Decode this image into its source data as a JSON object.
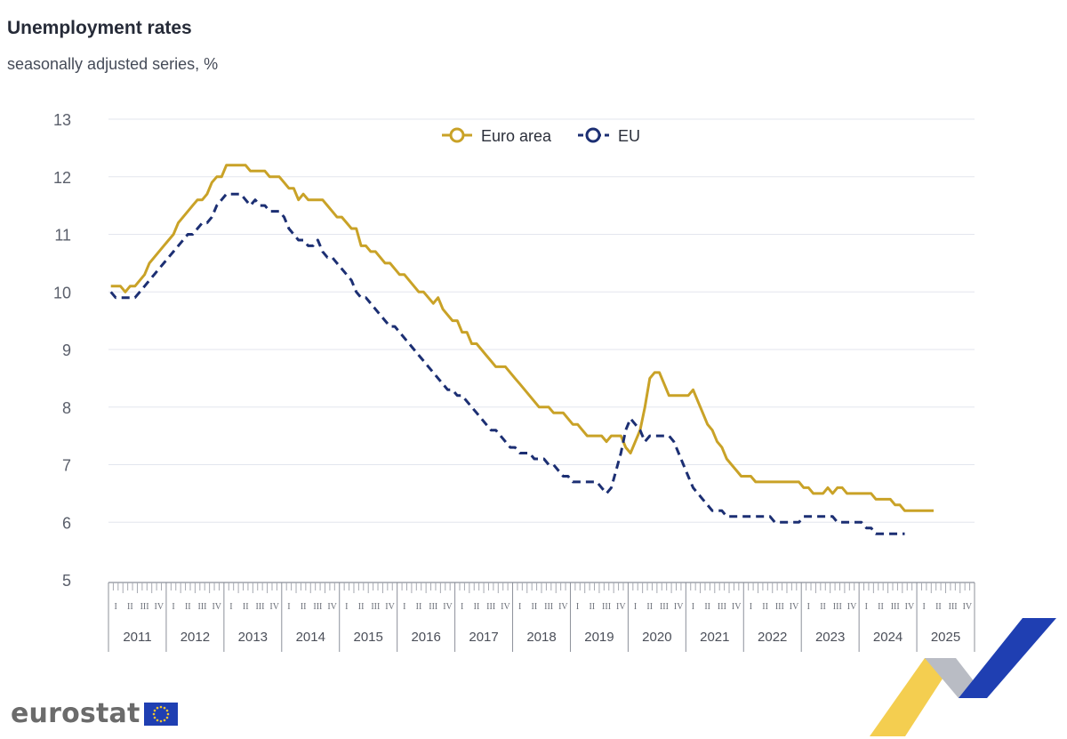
{
  "header": {
    "title": "Unemployment rates",
    "subtitle": "seasonally adjusted series, %"
  },
  "brand": {
    "wordmark": "eurostat",
    "flag_icon": "eu-flag-icon"
  },
  "colors": {
    "euro_area": "#c9a227",
    "eu": "#1c2f73",
    "grid": "#e3e6ee",
    "axis_text": "#5a5f6b",
    "ribbon_yellow": "#f2c531",
    "ribbon_blue": "#1f3fb2",
    "ribbon_grey": "#b9bcc4"
  },
  "chart_data": {
    "type": "line",
    "title": "Unemployment rates",
    "subtitle": "seasonally adjusted series, %",
    "xlabel": "",
    "ylabel": "",
    "ylim": [
      5,
      13
    ],
    "yticks": [
      "5",
      "6",
      "7",
      "8",
      "9",
      "10",
      "11",
      "12",
      "13"
    ],
    "grid": true,
    "legend_position": "top-center",
    "start_month": "2011-01",
    "quarter_labels": [
      "I",
      "II",
      "III",
      "IV"
    ],
    "years": [
      "2011",
      "2012",
      "2013",
      "2014",
      "2015",
      "2016",
      "2017",
      "2018",
      "2019",
      "2020",
      "2021",
      "2022",
      "2023",
      "2024",
      "2025"
    ],
    "series": [
      {
        "name": "Euro area",
        "style": "solid",
        "values": [
          10.1,
          10.1,
          10.1,
          10.0,
          10.1,
          10.1,
          10.2,
          10.3,
          10.5,
          10.6,
          10.7,
          10.8,
          10.9,
          11.0,
          11.2,
          11.3,
          11.4,
          11.5,
          11.6,
          11.6,
          11.7,
          11.9,
          12.0,
          12.0,
          12.2,
          12.2,
          12.2,
          12.2,
          12.2,
          12.1,
          12.1,
          12.1,
          12.1,
          12.0,
          12.0,
          12.0,
          11.9,
          11.8,
          11.8,
          11.6,
          11.7,
          11.6,
          11.6,
          11.6,
          11.6,
          11.5,
          11.4,
          11.3,
          11.3,
          11.2,
          11.1,
          11.1,
          10.8,
          10.8,
          10.7,
          10.7,
          10.6,
          10.5,
          10.5,
          10.4,
          10.3,
          10.3,
          10.2,
          10.1,
          10.0,
          10.0,
          9.9,
          9.8,
          9.9,
          9.7,
          9.6,
          9.5,
          9.5,
          9.3,
          9.3,
          9.1,
          9.1,
          9.0,
          8.9,
          8.8,
          8.7,
          8.7,
          8.7,
          8.6,
          8.5,
          8.4,
          8.3,
          8.2,
          8.1,
          8.0,
          8.0,
          8.0,
          7.9,
          7.9,
          7.9,
          7.8,
          7.7,
          7.7,
          7.6,
          7.5,
          7.5,
          7.5,
          7.5,
          7.4,
          7.5,
          7.5,
          7.5,
          7.3,
          7.2,
          7.4,
          7.6,
          8.0,
          8.5,
          8.6,
          8.6,
          8.4,
          8.2,
          8.2,
          8.2,
          8.2,
          8.2,
          8.3,
          8.1,
          7.9,
          7.7,
          7.6,
          7.4,
          7.3,
          7.1,
          7.0,
          6.9,
          6.8,
          6.8,
          6.8,
          6.7,
          6.7,
          6.7,
          6.7,
          6.7,
          6.7,
          6.7,
          6.7,
          6.7,
          6.7,
          6.6,
          6.6,
          6.5,
          6.5,
          6.5,
          6.6,
          6.5,
          6.6,
          6.6,
          6.5,
          6.5,
          6.5,
          6.5,
          6.5,
          6.5,
          6.4,
          6.4,
          6.4,
          6.4,
          6.3,
          6.3,
          6.2,
          6.2,
          6.2,
          6.2,
          6.2,
          6.2,
          6.2
        ]
      },
      {
        "name": "EU",
        "style": "dashed",
        "values": [
          10.0,
          9.9,
          9.9,
          9.9,
          9.9,
          9.9,
          10.0,
          10.1,
          10.2,
          10.3,
          10.4,
          10.5,
          10.6,
          10.7,
          10.8,
          10.9,
          11.0,
          11.0,
          11.1,
          11.2,
          11.2,
          11.3,
          11.5,
          11.6,
          11.7,
          11.7,
          11.7,
          11.7,
          11.6,
          11.5,
          11.6,
          11.5,
          11.5,
          11.4,
          11.4,
          11.4,
          11.3,
          11.1,
          11.0,
          10.9,
          10.9,
          10.8,
          10.8,
          10.9,
          10.7,
          10.6,
          10.6,
          10.5,
          10.4,
          10.3,
          10.2,
          10.0,
          9.9,
          9.9,
          9.8,
          9.7,
          9.6,
          9.5,
          9.4,
          9.4,
          9.3,
          9.2,
          9.1,
          9.0,
          8.9,
          8.8,
          8.7,
          8.6,
          8.5,
          8.4,
          8.3,
          8.3,
          8.2,
          8.2,
          8.1,
          8.0,
          7.9,
          7.8,
          7.7,
          7.6,
          7.6,
          7.5,
          7.4,
          7.3,
          7.3,
          7.2,
          7.2,
          7.2,
          7.1,
          7.1,
          7.1,
          7.0,
          7.0,
          6.9,
          6.8,
          6.8,
          6.7,
          6.7,
          6.7,
          6.7,
          6.7,
          6.7,
          6.6,
          6.5,
          6.6,
          6.9,
          7.2,
          7.6,
          7.8,
          7.7,
          7.6,
          7.4,
          7.5,
          7.5,
          7.5,
          7.5,
          7.5,
          7.4,
          7.2,
          7.0,
          6.8,
          6.6,
          6.5,
          6.4,
          6.3,
          6.2,
          6.2,
          6.2,
          6.1,
          6.1,
          6.1,
          6.1,
          6.1,
          6.1,
          6.1,
          6.1,
          6.1,
          6.1,
          6.0,
          6.0,
          6.0,
          6.0,
          6.0,
          6.0,
          6.1,
          6.1,
          6.1,
          6.1,
          6.1,
          6.1,
          6.1,
          6.0,
          6.0,
          6.0,
          6.0,
          6.0,
          6.0,
          5.9,
          5.9,
          5.8,
          5.8,
          5.8,
          5.8,
          5.8,
          5.8,
          5.8
        ]
      }
    ]
  }
}
